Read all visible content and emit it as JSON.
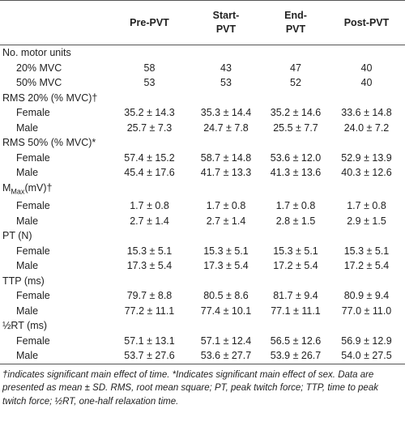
{
  "table": {
    "columns": [
      [
        "Pre-PVT"
      ],
      [
        "Start-",
        "PVT"
      ],
      [
        "End-",
        "PVT"
      ],
      [
        "Post-PVT"
      ]
    ],
    "rows": [
      {
        "label": "No. motor units"
      },
      {
        "label": "20% MVC",
        "values": [
          "58",
          "43",
          "47",
          "40"
        ]
      },
      {
        "label": "50% MVC",
        "values": [
          "53",
          "53",
          "52",
          "40"
        ]
      },
      {
        "label": "RMS 20% (% MVC)†"
      },
      {
        "label": "Female",
        "values": [
          "35.2 ± 14.3",
          "35.3 ± 14.4",
          "35.2 ± 14.6",
          "33.6 ± 14.8"
        ]
      },
      {
        "label": "Male",
        "values": [
          "25.7 ± 7.3",
          "24.7 ± 7.8",
          "25.5 ± 7.7",
          "24.0 ± 7.2"
        ]
      },
      {
        "label": "RMS 50% (% MVC)*"
      },
      {
        "label": "Female",
        "values": [
          "57.4 ± 15.2",
          "58.7 ± 14.8",
          "53.6 ± 12.0",
          "52.9 ± 13.9"
        ]
      },
      {
        "label": "Male",
        "values": [
          "45.4 ± 17.6",
          "41.7 ± 13.3",
          "41.3 ± 13.6",
          "40.3 ± 12.6"
        ]
      },
      {
        "label_parts": [
          "M",
          "Max",
          "(mV)†"
        ]
      },
      {
        "label": "Female",
        "values": [
          "1.7 ± 0.8",
          "1.7 ± 0.8",
          "1.7 ± 0.8",
          "1.7 ± 0.8"
        ]
      },
      {
        "label": "Male",
        "values": [
          "2.7 ± 1.4",
          "2.7 ± 1.4",
          "2.8 ± 1.5",
          "2.9 ± 1.5"
        ]
      },
      {
        "label": "PT (N)"
      },
      {
        "label": "Female",
        "values": [
          "15.3 ± 5.1",
          "15.3 ± 5.1",
          "15.3 ± 5.1",
          "15.3 ± 5.1"
        ]
      },
      {
        "label": "Male",
        "values": [
          "17.3 ± 5.4",
          "17.3 ± 5.4",
          "17.2 ± 5.4",
          "17.2 ± 5.4"
        ]
      },
      {
        "label": "TTP (ms)"
      },
      {
        "label": "Female",
        "values": [
          "79.7 ± 8.8",
          "80.5 ± 8.6",
          "81.7 ± 9.4",
          "80.9 ± 9.4"
        ]
      },
      {
        "label": "Male",
        "values": [
          "77.2 ± 11.1",
          "77.4 ± 10.1",
          "77.1 ± 11.1",
          "77.0 ± 11.0"
        ]
      },
      {
        "label": "½RT (ms)"
      },
      {
        "label": "Female",
        "values": [
          "57.1 ± 13.1",
          "57.1 ± 12.4",
          "56.5 ± 12.6",
          "56.9 ± 12.9"
        ]
      },
      {
        "label": "Male",
        "values": [
          "53.7 ± 27.6",
          "53.6 ± 27.7",
          "53.9 ± 26.7",
          "54.0 ± 27.5"
        ]
      }
    ],
    "footnote": "†indicates significant main effect of time. *Indicates significant main effect of sex. Data are presented as mean ± SD. RMS, root mean square; PT, peak twitch force; TTP, time to peak twitch force; ½RT, one-half relaxation time."
  }
}
